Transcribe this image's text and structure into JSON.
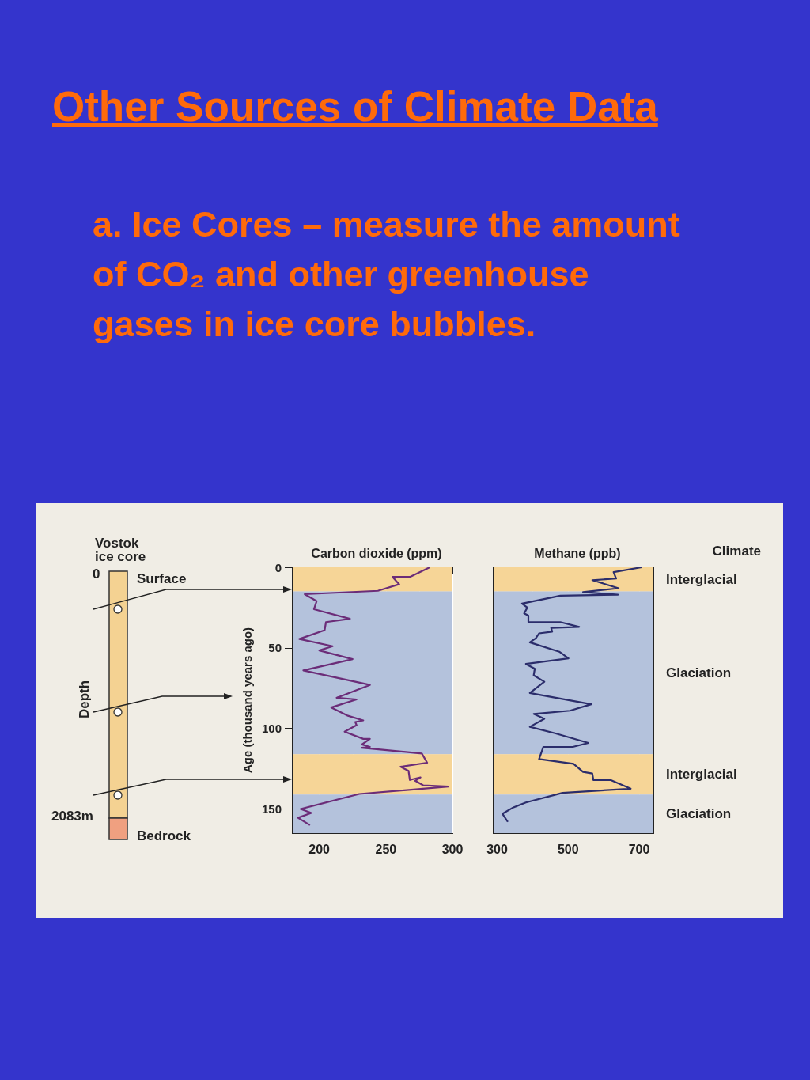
{
  "chart_data": [
    {
      "type": "other",
      "title": "Other Sources of Climate Data",
      "subtitle": "a. Ice Cores – measure the amount of CO₂ and other greenhouse gases in ice core bubbles."
    },
    {
      "type": "other",
      "title": "Vostok ice core",
      "ylabel": "Depth",
      "annotations": [
        "0",
        "Surface",
        "2083m",
        "Bedrock"
      ]
    },
    {
      "type": "line",
      "title": "Carbon dioxide (ppm)",
      "ylabel": "Age (thousand years ago)",
      "marker": "none",
      "line_style": "solid",
      "grid": "x",
      "xlim": [
        180,
        300
      ],
      "xticks": [
        200,
        {
          "value": 225,
          "label": null
        },
        250,
        {
          "value": 275,
          "label": null
        },
        300
      ],
      "ylim": [
        165,
        0
      ],
      "yticks": [
        0,
        50,
        100,
        150
      ],
      "bands": [
        {
          "axis": "y",
          "from": 0,
          "to": 15,
          "color": "#f6d597"
        },
        {
          "axis": "y",
          "from": 15,
          "to": 116,
          "color": "#b4c2dc"
        },
        {
          "axis": "y",
          "from": 116,
          "to": 141,
          "color": "#f6d597"
        },
        {
          "axis": "y",
          "from": 141,
          "to": 165,
          "color": "#b4c2dc"
        }
      ],
      "series": [
        {
          "color": "#6b2c78",
          "x": [
            283,
            268,
            255,
            260,
            244,
            189,
            198,
            196,
            223,
            205,
            204,
            185,
            210,
            200,
            225,
            188,
            238,
            213,
            228,
            209,
            221,
            233,
            227,
            228,
            219,
            233,
            238,
            232,
            238,
            232,
            277,
            281,
            261,
            267,
            268,
            276,
            272,
            278,
            297,
            230,
            186,
            194,
            184,
            193
          ],
          "values": [
            0,
            6,
            6,
            10.5,
            14.6,
            16.7,
            21,
            26,
            32,
            34,
            39,
            44.5,
            49,
            51.6,
            57,
            64,
            73,
            81,
            82,
            87,
            92,
            95,
            96,
            98,
            102,
            106.5,
            106.5,
            110,
            111.5,
            112,
            115.6,
            121.3,
            123.8,
            126.3,
            132,
            130.4,
            132.5,
            135.3,
            136.1,
            140.7,
            150,
            152.5,
            155.5,
            160
          ]
        }
      ]
    },
    {
      "type": "line",
      "title": "Methane (ppb)",
      "annotations": [
        "Climate"
      ],
      "marker": "none",
      "line_style": "solid",
      "grid": "x",
      "tick_labels": "x",
      "xlim": [
        290,
        740
      ],
      "xticks": [
        300,
        {
          "value": 400,
          "label": null
        },
        500,
        {
          "value": 600,
          "label": null
        },
        700
      ],
      "ylim": [
        165,
        0
      ],
      "bands": [
        {
          "axis": "y",
          "from": 0,
          "to": 15,
          "color": "#f6d597",
          "label": "Interglacial"
        },
        {
          "axis": "y",
          "from": 15,
          "to": 116,
          "color": "#b4c2dc",
          "label": "Glaciation"
        },
        {
          "axis": "y",
          "from": 116,
          "to": 141,
          "color": "#f6d597",
          "label": "Interglacial"
        },
        {
          "axis": "y",
          "from": 141,
          "to": 165,
          "color": "#b4c2dc",
          "label": "Glaciation"
        }
      ],
      "series": [
        {
          "color": "#2b2d6b",
          "x": [
            707,
            628,
            635,
            568,
            642,
            542,
            640,
            478,
            370,
            385,
            376,
            388,
            388,
            478,
            531,
            452,
            455,
            418,
            409,
            392,
            475,
            501,
            381,
            406,
            403,
            433,
            392,
            565,
            505,
            403,
            433,
            392,
            463,
            557,
            513,
            430,
            418,
            515,
            542,
            568,
            571,
            619,
            676,
            484,
            381,
            346,
            315,
            330
          ],
          "values": [
            0,
            3,
            7,
            8,
            13,
            15.4,
            17,
            17.6,
            22.5,
            25,
            28.6,
            30,
            34,
            34,
            37,
            37.6,
            40,
            41,
            44,
            46.6,
            52.4,
            56.5,
            60,
            63,
            67,
            71,
            78,
            85,
            89,
            91,
            94,
            99,
            103,
            109,
            111.5,
            111.5,
            119,
            122,
            127,
            128,
            132,
            132,
            137.4,
            140,
            146,
            149,
            153,
            158
          ]
        }
      ]
    }
  ]
}
